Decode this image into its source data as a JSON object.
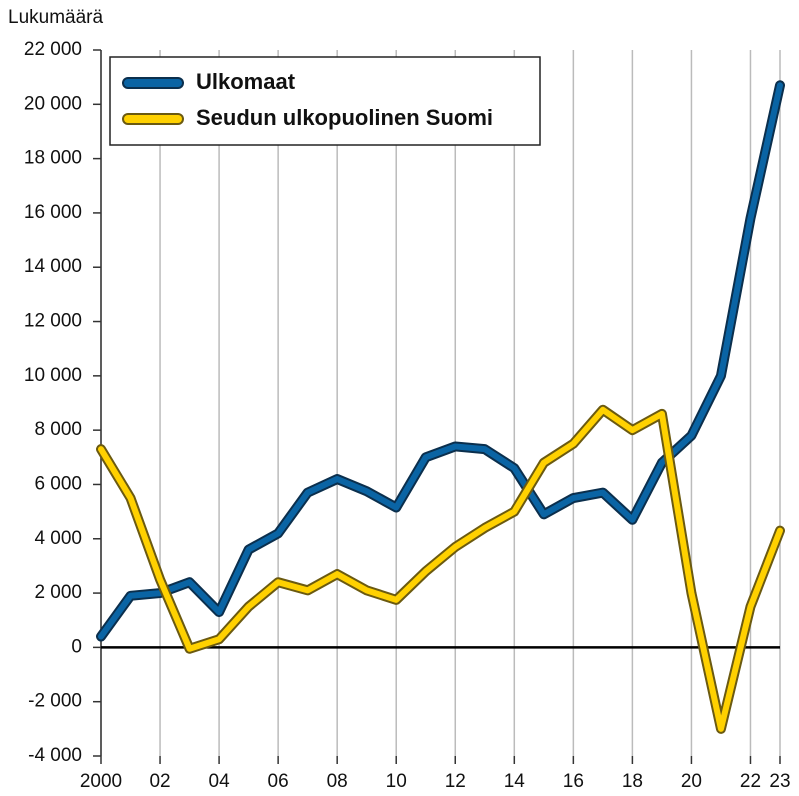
{
  "chart_data": {
    "type": "line",
    "y_axis_label": "Lukumäärä",
    "x": [
      2000,
      2001,
      2002,
      2003,
      2004,
      2005,
      2006,
      2007,
      2008,
      2009,
      2010,
      2011,
      2012,
      2013,
      2014,
      2015,
      2016,
      2017,
      2018,
      2019,
      2020,
      2021,
      2022,
      2023
    ],
    "series": [
      {
        "name": "Ulkomaat",
        "color": "#0a64a4",
        "outline": "#0b2f4d",
        "values": [
          400,
          1900,
          2000,
          2400,
          1300,
          3600,
          4200,
          5700,
          6200,
          5750,
          5150,
          7000,
          7400,
          7300,
          6600,
          4900,
          5500,
          5700,
          4700,
          6800,
          7800,
          10000,
          15800,
          20700
        ]
      },
      {
        "name": "Seudun ulkopuolinen Suomi",
        "color": "#ffd100",
        "outline": "#6b5a10",
        "values": [
          7300,
          5500,
          2500,
          -50,
          300,
          1500,
          2400,
          2100,
          2700,
          2100,
          1750,
          2800,
          3700,
          4400,
          5000,
          6800,
          7500,
          8750,
          8000,
          8600,
          2000,
          -3000,
          1500,
          4300
        ]
      }
    ],
    "xlim": [
      2000,
      2023
    ],
    "xticks": [
      {
        "value": 2000,
        "label": "2000"
      },
      {
        "value": 2002,
        "label": "02"
      },
      {
        "value": 2004,
        "label": "04"
      },
      {
        "value": 2006,
        "label": "06"
      },
      {
        "value": 2008,
        "label": "08"
      },
      {
        "value": 2010,
        "label": "10"
      },
      {
        "value": 2012,
        "label": "12"
      },
      {
        "value": 2014,
        "label": "14"
      },
      {
        "value": 2016,
        "label": "16"
      },
      {
        "value": 2018,
        "label": "18"
      },
      {
        "value": 2020,
        "label": "20"
      },
      {
        "value": 2022,
        "label": "22"
      },
      {
        "value": 2023,
        "label": "23"
      }
    ],
    "ylim": [
      -4000,
      22000
    ],
    "yticks": [
      {
        "value": -4000,
        "label": "-4 000"
      },
      {
        "value": -2000,
        "label": "-2 000"
      },
      0,
      {
        "value": 2000,
        "label": "2 000"
      },
      {
        "value": 4000,
        "label": "4 000"
      },
      {
        "value": 6000,
        "label": "6 000"
      },
      {
        "value": 8000,
        "label": "8 000"
      },
      {
        "value": 10000,
        "label": "10 000"
      },
      {
        "value": 12000,
        "label": "12 000"
      },
      {
        "value": 14000,
        "label": "14 000"
      },
      {
        "value": 16000,
        "label": "16 000"
      },
      {
        "value": 18000,
        "label": "18 000"
      },
      {
        "value": 20000,
        "label": "20 000"
      },
      {
        "value": 22000,
        "label": "22 000"
      }
    ],
    "grid": "x",
    "legend": "upper left"
  }
}
